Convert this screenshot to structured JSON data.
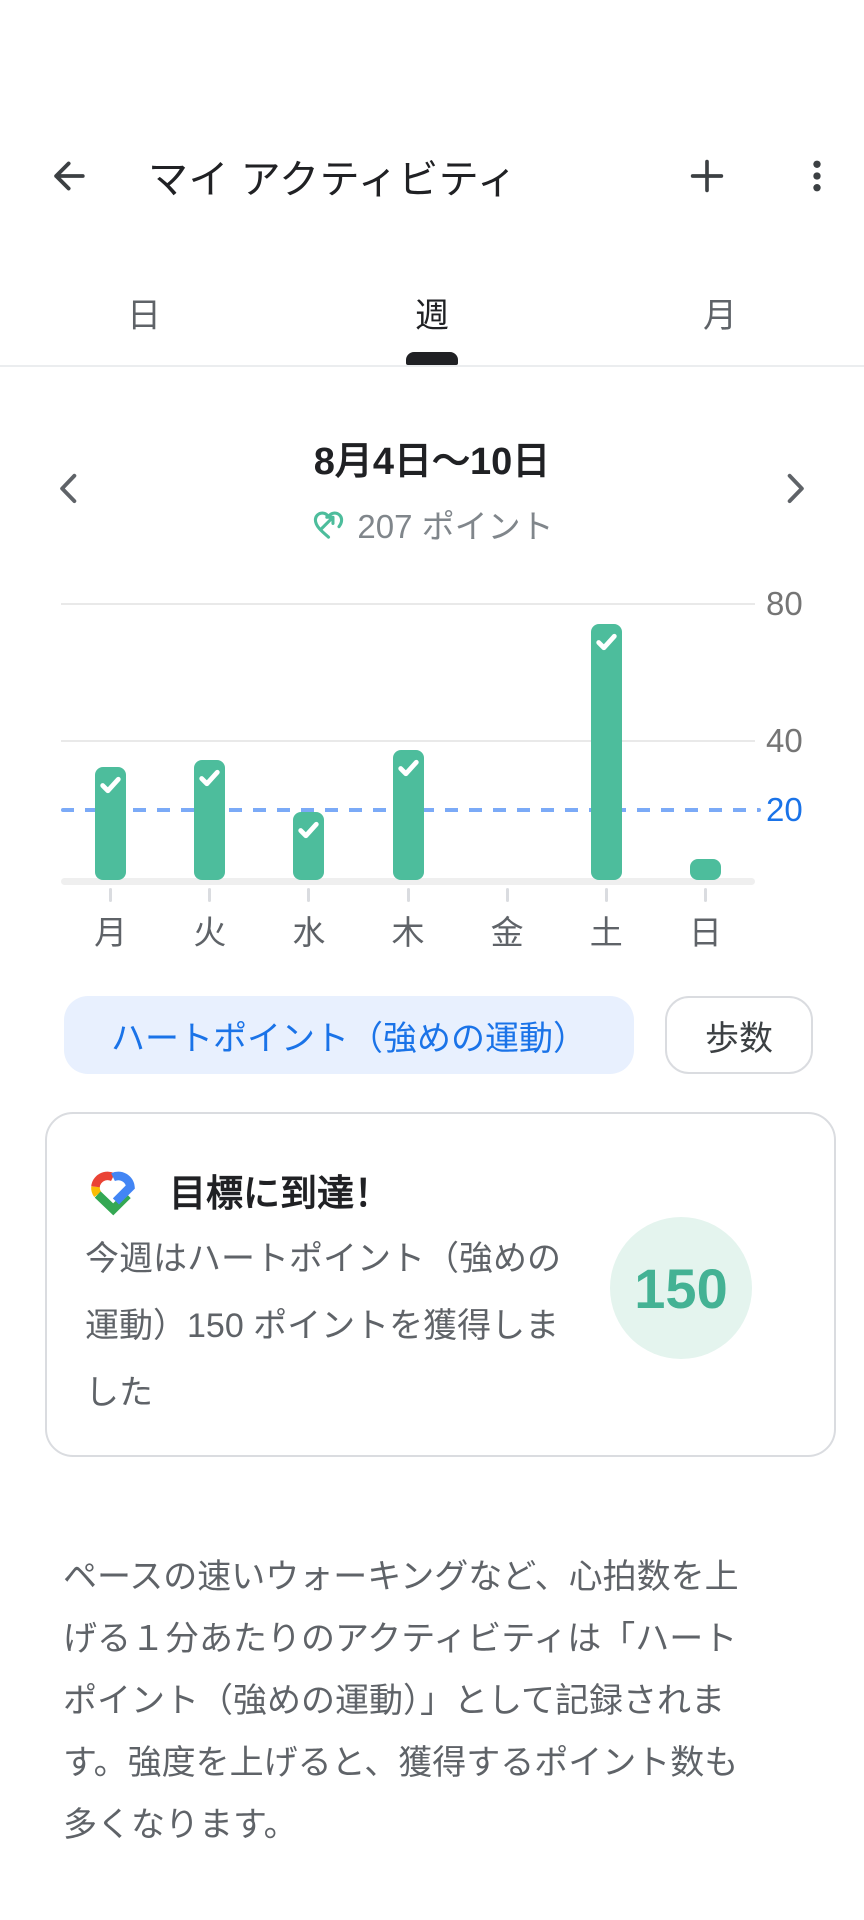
{
  "header": {
    "title": "マイ アクティビティ",
    "back_icon": "arrow-back",
    "add_icon": "plus",
    "menu_icon": "kebab-menu"
  },
  "tabs": {
    "items": [
      {
        "label": "日",
        "selected": false
      },
      {
        "label": "週",
        "selected": true
      },
      {
        "label": "月",
        "selected": false
      }
    ]
  },
  "week_nav": {
    "range_label": "8月4日〜10日",
    "summary_value": "207 ポイント",
    "prev_icon": "chevron-left",
    "next_icon": "chevron-right",
    "summary_icon": "heart-points"
  },
  "chart_data": {
    "type": "bar",
    "categories": [
      "月",
      "火",
      "水",
      "木",
      "金",
      "土",
      "日"
    ],
    "values": [
      33,
      35,
      20,
      38,
      0,
      75,
      6
    ],
    "goal_achieved": [
      true,
      true,
      true,
      true,
      false,
      true,
      false
    ],
    "goal_line": 20,
    "yticks": [
      80,
      40,
      20
    ],
    "ylim": [
      0,
      85
    ],
    "xlabel": "",
    "ylabel": "",
    "grid": true,
    "y_axis_side": "right",
    "bar_color": "#4dbd9c",
    "goal_line_color": "#7baaf7"
  },
  "filters": {
    "items": [
      {
        "label": "ハートポイント（強めの運動）",
        "selected": true
      },
      {
        "label": "歩数",
        "selected": false
      }
    ]
  },
  "goal_card": {
    "logo_icon": "google-fit-heart",
    "title": "目標に到達！",
    "body": "今週はハートポイント（強めの運動）150 ポイントを獲得しました",
    "badge_value": "150"
  },
  "description": "ペースの速いウォーキングなど、心拍数を上げる１分あたりのアクティビティは「ハートポイント（強めの運動）」として記録されます。強度を上げると、獲得するポイント数も多くなります。",
  "colors": {
    "accent_blue": "#1a73e8",
    "bar_teal": "#4dbd9c",
    "badge_bg": "#e4f4ee",
    "badge_text": "#44b294",
    "chip_selected_bg": "#e8f0fe",
    "text_primary": "#202124",
    "text_secondary": "#5f6368"
  }
}
